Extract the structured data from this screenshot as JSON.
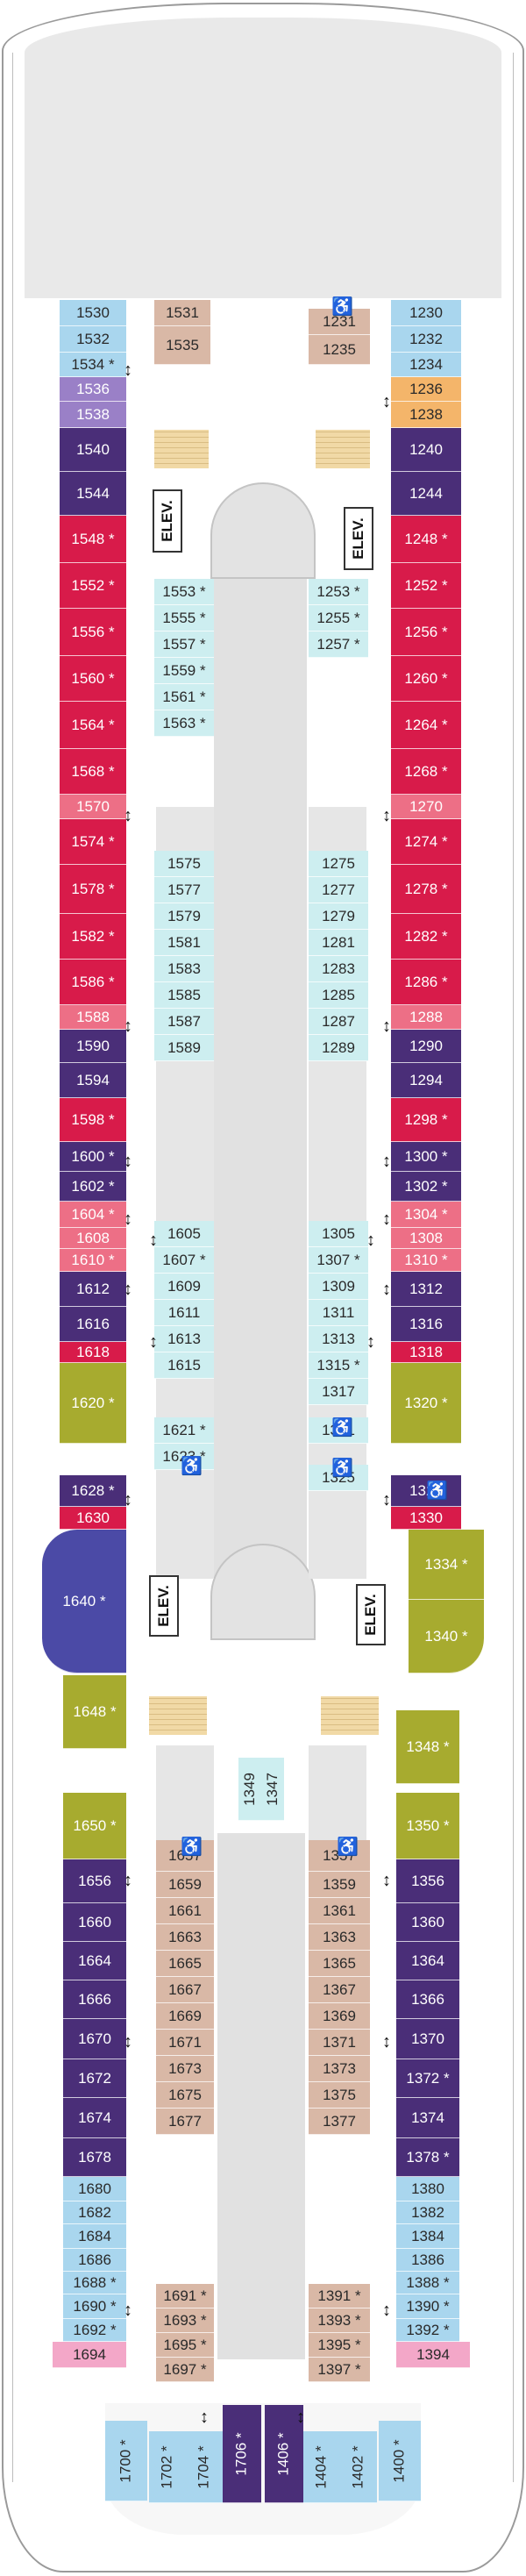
{
  "legend": {
    "elevator_label": "ELEV."
  },
  "colors": {
    "sky": "#a9d6ee",
    "aqua": "#cdeef0",
    "tan": "#d9b8a6",
    "lilac": "#9a80c7",
    "purple": "#4a2e78",
    "crimson": "#d81b4a",
    "pink": "#ed6f86",
    "olive": "#a7ab2f",
    "indigo": "#4b4aa6",
    "orange": "#f4b56a",
    "babypink": "#f3a7c8",
    "hull": "#ededed",
    "corridor": "#e2e2e2",
    "stair": "#f1d9a6"
  },
  "symbols": {
    "accessible": "♿",
    "connecting": "↕"
  },
  "cabins": [
    {
      "n": "1530",
      "c": "sky"
    },
    {
      "n": "1532",
      "c": "sky"
    },
    {
      "n": "1534",
      "c": "sky",
      "star": true
    },
    {
      "n": "1536",
      "c": "lilac"
    },
    {
      "n": "1538",
      "c": "lilac"
    },
    {
      "n": "1540",
      "c": "purple"
    },
    {
      "n": "1544",
      "c": "purple"
    },
    {
      "n": "1548",
      "c": "crimson",
      "star": true
    },
    {
      "n": "1552",
      "c": "crimson",
      "star": true
    },
    {
      "n": "1556",
      "c": "crimson",
      "star": true
    },
    {
      "n": "1560",
      "c": "crimson",
      "star": true
    },
    {
      "n": "1564",
      "c": "crimson",
      "star": true
    },
    {
      "n": "1568",
      "c": "crimson",
      "star": true
    },
    {
      "n": "1570",
      "c": "pink"
    },
    {
      "n": "1574",
      "c": "crimson",
      "star": true
    },
    {
      "n": "1578",
      "c": "crimson",
      "star": true
    },
    {
      "n": "1582",
      "c": "crimson",
      "star": true
    },
    {
      "n": "1586",
      "c": "crimson",
      "star": true
    },
    {
      "n": "1588",
      "c": "pink"
    },
    {
      "n": "1590",
      "c": "purple"
    },
    {
      "n": "1594",
      "c": "purple"
    },
    {
      "n": "1598",
      "c": "crimson",
      "star": true
    },
    {
      "n": "1600",
      "c": "purple",
      "star": true
    },
    {
      "n": "1602",
      "c": "purple",
      "star": true
    },
    {
      "n": "1604",
      "c": "pink",
      "star": true
    },
    {
      "n": "1608",
      "c": "pink"
    },
    {
      "n": "1610",
      "c": "pink",
      "star": true
    },
    {
      "n": "1612",
      "c": "purple"
    },
    {
      "n": "1616",
      "c": "purple"
    },
    {
      "n": "1618",
      "c": "crimson"
    },
    {
      "n": "1620",
      "c": "olive",
      "star": true
    },
    {
      "n": "1628",
      "c": "purple",
      "star": true
    },
    {
      "n": "1630",
      "c": "crimson"
    },
    {
      "n": "1640",
      "c": "indigo",
      "star": true
    },
    {
      "n": "1648",
      "c": "olive",
      "star": true
    },
    {
      "n": "1650",
      "c": "olive",
      "star": true
    },
    {
      "n": "1656",
      "c": "purple"
    },
    {
      "n": "1660",
      "c": "purple"
    },
    {
      "n": "1664",
      "c": "purple"
    },
    {
      "n": "1666",
      "c": "purple"
    },
    {
      "n": "1670",
      "c": "purple"
    },
    {
      "n": "1672",
      "c": "purple"
    },
    {
      "n": "1674",
      "c": "purple"
    },
    {
      "n": "1678",
      "c": "purple"
    },
    {
      "n": "1680",
      "c": "sky"
    },
    {
      "n": "1682",
      "c": "sky"
    },
    {
      "n": "1684",
      "c": "sky"
    },
    {
      "n": "1686",
      "c": "sky"
    },
    {
      "n": "1688",
      "c": "sky",
      "star": true
    },
    {
      "n": "1690",
      "c": "sky",
      "star": true
    },
    {
      "n": "1692",
      "c": "sky",
      "star": true
    },
    {
      "n": "1694",
      "c": "babypink"
    },
    {
      "n": "1531",
      "c": "tan"
    },
    {
      "n": "1535",
      "c": "tan"
    },
    {
      "n": "1553",
      "c": "aqua",
      "star": true
    },
    {
      "n": "1555",
      "c": "aqua",
      "star": true
    },
    {
      "n": "1557",
      "c": "aqua",
      "star": true
    },
    {
      "n": "1559",
      "c": "aqua",
      "star": true
    },
    {
      "n": "1561",
      "c": "aqua",
      "star": true
    },
    {
      "n": "1563",
      "c": "aqua",
      "star": true
    },
    {
      "n": "1575",
      "c": "aqua"
    },
    {
      "n": "1577",
      "c": "aqua"
    },
    {
      "n": "1579",
      "c": "aqua"
    },
    {
      "n": "1581",
      "c": "aqua"
    },
    {
      "n": "1583",
      "c": "aqua"
    },
    {
      "n": "1585",
      "c": "aqua"
    },
    {
      "n": "1587",
      "c": "aqua"
    },
    {
      "n": "1589",
      "c": "aqua"
    },
    {
      "n": "1605",
      "c": "aqua"
    },
    {
      "n": "1607",
      "c": "aqua",
      "star": true
    },
    {
      "n": "1609",
      "c": "aqua"
    },
    {
      "n": "1611",
      "c": "aqua"
    },
    {
      "n": "1613",
      "c": "aqua"
    },
    {
      "n": "1615",
      "c": "aqua"
    },
    {
      "n": "1621",
      "c": "aqua",
      "star": true
    },
    {
      "n": "1623",
      "c": "aqua",
      "star": true
    },
    {
      "n": "1349",
      "c": "aqua"
    },
    {
      "n": "1347",
      "c": "aqua"
    },
    {
      "n": "1657",
      "c": "tan"
    },
    {
      "n": "1659",
      "c": "tan"
    },
    {
      "n": "1661",
      "c": "tan"
    },
    {
      "n": "1663",
      "c": "tan"
    },
    {
      "n": "1665",
      "c": "tan"
    },
    {
      "n": "1667",
      "c": "tan"
    },
    {
      "n": "1669",
      "c": "tan"
    },
    {
      "n": "1671",
      "c": "tan"
    },
    {
      "n": "1673",
      "c": "tan"
    },
    {
      "n": "1675",
      "c": "tan"
    },
    {
      "n": "1677",
      "c": "tan"
    },
    {
      "n": "1691",
      "c": "tan",
      "star": true
    },
    {
      "n": "1693",
      "c": "tan",
      "star": true
    },
    {
      "n": "1695",
      "c": "tan",
      "star": true
    },
    {
      "n": "1697",
      "c": "tan",
      "star": true
    },
    {
      "n": "1231",
      "c": "tan"
    },
    {
      "n": "1235",
      "c": "tan"
    },
    {
      "n": "1253",
      "c": "aqua",
      "star": true
    },
    {
      "n": "1255",
      "c": "aqua",
      "star": true
    },
    {
      "n": "1257",
      "c": "aqua",
      "star": true
    },
    {
      "n": "1275",
      "c": "aqua"
    },
    {
      "n": "1277",
      "c": "aqua"
    },
    {
      "n": "1279",
      "c": "aqua"
    },
    {
      "n": "1281",
      "c": "aqua"
    },
    {
      "n": "1283",
      "c": "aqua"
    },
    {
      "n": "1285",
      "c": "aqua"
    },
    {
      "n": "1287",
      "c": "aqua"
    },
    {
      "n": "1289",
      "c": "aqua"
    },
    {
      "n": "1305",
      "c": "aqua"
    },
    {
      "n": "1307",
      "c": "aqua",
      "star": true
    },
    {
      "n": "1309",
      "c": "aqua"
    },
    {
      "n": "1311",
      "c": "aqua"
    },
    {
      "n": "1313",
      "c": "aqua"
    },
    {
      "n": "1315",
      "c": "aqua",
      "star": true
    },
    {
      "n": "1317",
      "c": "aqua"
    },
    {
      "n": "1321",
      "c": "aqua"
    },
    {
      "n": "1325",
      "c": "aqua"
    },
    {
      "n": "1357",
      "c": "tan"
    },
    {
      "n": "1359",
      "c": "tan"
    },
    {
      "n": "1361",
      "c": "tan"
    },
    {
      "n": "1363",
      "c": "tan"
    },
    {
      "n": "1365",
      "c": "tan"
    },
    {
      "n": "1367",
      "c": "tan"
    },
    {
      "n": "1369",
      "c": "tan"
    },
    {
      "n": "1371",
      "c": "tan"
    },
    {
      "n": "1373",
      "c": "tan"
    },
    {
      "n": "1375",
      "c": "tan"
    },
    {
      "n": "1377",
      "c": "tan"
    },
    {
      "n": "1391",
      "c": "tan",
      "star": true
    },
    {
      "n": "1393",
      "c": "tan",
      "star": true
    },
    {
      "n": "1395",
      "c": "tan",
      "star": true
    },
    {
      "n": "1397",
      "c": "tan",
      "star": true
    },
    {
      "n": "1230",
      "c": "sky"
    },
    {
      "n": "1232",
      "c": "sky"
    },
    {
      "n": "1234",
      "c": "sky"
    },
    {
      "n": "1236",
      "c": "orange"
    },
    {
      "n": "1238",
      "c": "orange"
    },
    {
      "n": "1240",
      "c": "purple"
    },
    {
      "n": "1244",
      "c": "purple"
    },
    {
      "n": "1248",
      "c": "crimson",
      "star": true
    },
    {
      "n": "1252",
      "c": "crimson",
      "star": true
    },
    {
      "n": "1256",
      "c": "crimson",
      "star": true
    },
    {
      "n": "1260",
      "c": "crimson",
      "star": true
    },
    {
      "n": "1264",
      "c": "crimson",
      "star": true
    },
    {
      "n": "1268",
      "c": "crimson",
      "star": true
    },
    {
      "n": "1270",
      "c": "pink"
    },
    {
      "n": "1274",
      "c": "crimson",
      "star": true
    },
    {
      "n": "1278",
      "c": "crimson",
      "star": true
    },
    {
      "n": "1282",
      "c": "crimson",
      "star": true
    },
    {
      "n": "1286",
      "c": "crimson",
      "star": true
    },
    {
      "n": "1288",
      "c": "pink"
    },
    {
      "n": "1290",
      "c": "purple"
    },
    {
      "n": "1294",
      "c": "purple"
    },
    {
      "n": "1298",
      "c": "crimson",
      "star": true
    },
    {
      "n": "1300",
      "c": "purple",
      "star": true
    },
    {
      "n": "1302",
      "c": "purple",
      "star": true
    },
    {
      "n": "1304",
      "c": "pink",
      "star": true
    },
    {
      "n": "1308",
      "c": "pink"
    },
    {
      "n": "1310",
      "c": "pink",
      "star": true
    },
    {
      "n": "1312",
      "c": "purple"
    },
    {
      "n": "1316",
      "c": "purple"
    },
    {
      "n": "1318",
      "c": "crimson"
    },
    {
      "n": "1320",
      "c": "olive",
      "star": true
    },
    {
      "n": "1328",
      "c": "purple"
    },
    {
      "n": "1330",
      "c": "crimson"
    },
    {
      "n": "1334",
      "c": "olive",
      "star": true
    },
    {
      "n": "1340",
      "c": "olive",
      "star": true
    },
    {
      "n": "1348",
      "c": "olive",
      "star": true
    },
    {
      "n": "1350",
      "c": "olive",
      "star": true
    },
    {
      "n": "1356",
      "c": "purple"
    },
    {
      "n": "1360",
      "c": "purple"
    },
    {
      "n": "1364",
      "c": "purple"
    },
    {
      "n": "1366",
      "c": "purple"
    },
    {
      "n": "1370",
      "c": "purple"
    },
    {
      "n": "1372",
      "c": "purple",
      "star": true
    },
    {
      "n": "1374",
      "c": "purple"
    },
    {
      "n": "1378",
      "c": "purple",
      "star": true
    },
    {
      "n": "1380",
      "c": "sky"
    },
    {
      "n": "1382",
      "c": "sky"
    },
    {
      "n": "1384",
      "c": "sky"
    },
    {
      "n": "1386",
      "c": "sky"
    },
    {
      "n": "1388",
      "c": "sky",
      "star": true
    },
    {
      "n": "1390",
      "c": "sky",
      "star": true
    },
    {
      "n": "1392",
      "c": "sky",
      "star": true
    },
    {
      "n": "1394",
      "c": "babypink"
    },
    {
      "n": "1700",
      "c": "sky",
      "star": true
    },
    {
      "n": "1702",
      "c": "sky",
      "star": true
    },
    {
      "n": "1704",
      "c": "sky",
      "star": true
    },
    {
      "n": "1706",
      "c": "purple",
      "star": true
    },
    {
      "n": "1406",
      "c": "purple",
      "star": true
    },
    {
      "n": "1404",
      "c": "sky",
      "star": true
    },
    {
      "n": "1402",
      "c": "sky",
      "star": true
    },
    {
      "n": "1400",
      "c": "sky",
      "star": true
    }
  ]
}
